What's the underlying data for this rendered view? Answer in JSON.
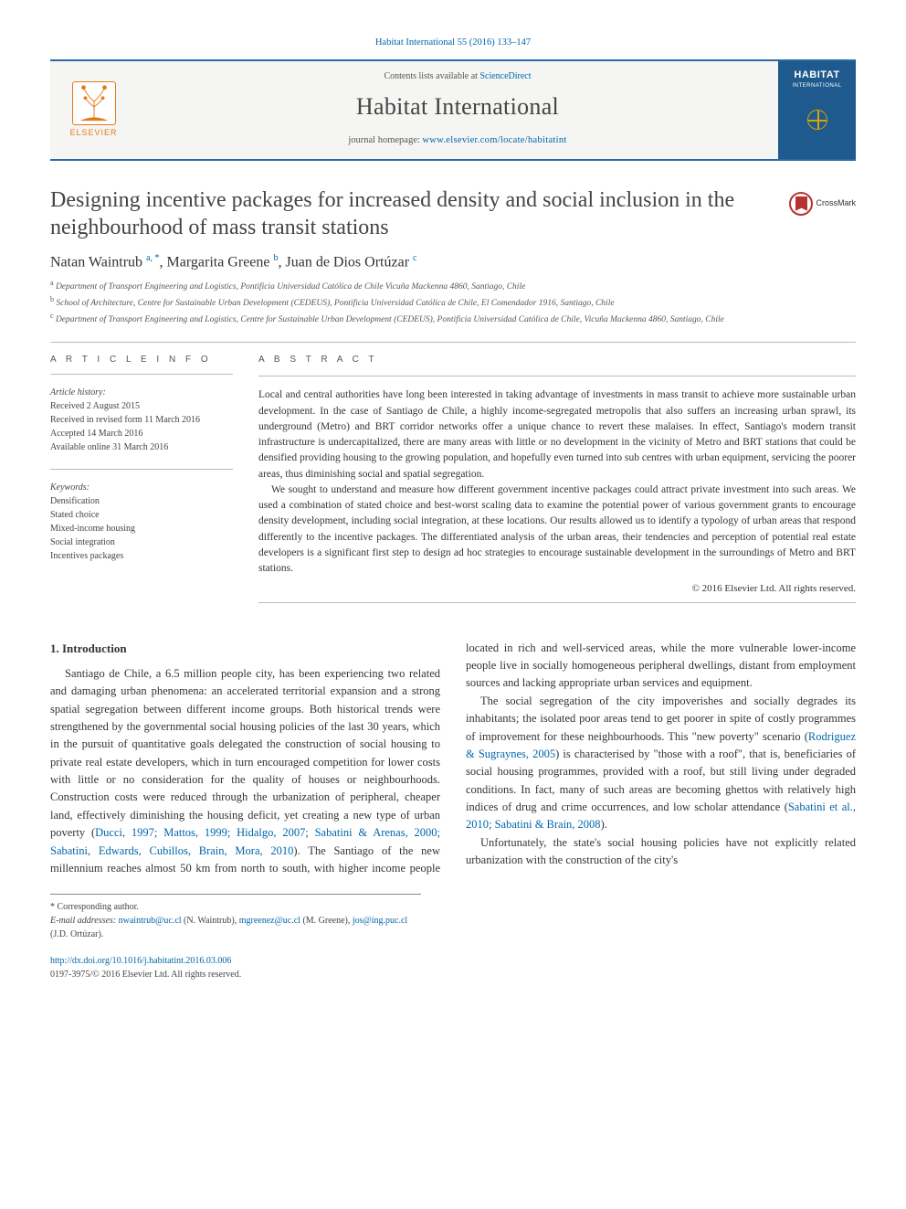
{
  "citation": "Habitat International 55 (2016) 133–147",
  "masthead": {
    "publisher_word": "ELSEVIER",
    "publisher_color": "#e67a17",
    "contents_prefix": "Contents lists available at ",
    "contents_link": "ScienceDirect",
    "journal_name": "Habitat International",
    "homepage_prefix": "journal homepage: ",
    "homepage_url": "www.elsevier.com/locate/habitatint",
    "cover_title": "HABITAT",
    "cover_subtitle": "INTERNATIONAL",
    "bar_color": "#2a6aa8",
    "cover_bg": "#1e5a8e"
  },
  "crossmark_label": "CrossMark",
  "article": {
    "title": "Designing incentive packages for increased density and social inclusion in the neighbourhood of mass transit stations",
    "authors_html": "Natan Waintrub <sup>a, *</sup>, Margarita Greene <sup>b</sup>, Juan de Dios Ortúzar <sup>c</sup>",
    "affiliations": [
      "a Department of Transport Engineering and Logistics, Pontificia Universidad Católica de Chile Vicuña Mackenna 4860, Santiago, Chile",
      "b School of Architecture, Centre for Sustainable Urban Development (CEDEUS), Pontificia Universidad Católica de Chile, El Comendador 1916, Santiago, Chile",
      "c Department of Transport Engineering and Logistics, Centre for Sustainable Urban Development (CEDEUS), Pontificia Universidad Católica de Chile, Vicuña Mackenna 4860, Santiago, Chile"
    ]
  },
  "info": {
    "heading": "A R T I C L E   I N F O",
    "history_label": "Article history:",
    "history": [
      "Received 2 August 2015",
      "Received in revised form 11 March 2016",
      "Accepted 14 March 2016",
      "Available online 31 March 2016"
    ],
    "keywords_label": "Keywords:",
    "keywords": [
      "Densification",
      "Stated choice",
      "Mixed-income housing",
      "Social integration",
      "Incentives packages"
    ]
  },
  "abstract": {
    "heading": "A B S T R A C T",
    "paragraphs": [
      "Local and central authorities have long been interested in taking advantage of investments in mass transit to achieve more sustainable urban development. In the case of Santiago de Chile, a highly income-segregated metropolis that also suffers an increasing urban sprawl, its underground (Metro) and BRT corridor networks offer a unique chance to revert these malaises. In effect, Santiago's modern transit infrastructure is undercapitalized, there are many areas with little or no development in the vicinity of Metro and BRT stations that could be densified providing housing to the growing population, and hopefully even turned into sub centres with urban equipment, servicing the poorer areas, thus diminishing social and spatial segregation.",
      "We sought to understand and measure how different government incentive packages could attract private investment into such areas. We used a combination of stated choice and best-worst scaling data to examine the potential power of various government grants to encourage density development, including social integration, at these locations. Our results allowed us to identify a typology of urban areas that respond differently to the incentive packages. The differentiated analysis of the urban areas, their tendencies and perception of potential real estate developers is a significant first step to design ad hoc strategies to encourage sustainable development in the surroundings of Metro and BRT stations."
    ],
    "copyright": "© 2016 Elsevier Ltd. All rights reserved."
  },
  "body": {
    "section_number": "1.",
    "section_title": "Introduction",
    "col1_p1_a": "Santiago de Chile, a 6.5 million people city, has been experiencing two related and damaging urban phenomena: an accelerated territorial expansion and a strong spatial segregation between different income groups. Both historical trends were strengthened by the governmental social housing policies of the last 30 years, which in the pursuit of quantitative goals delegated the construction of social housing to private real estate developers, which in turn encouraged competition for lower costs with little or no consideration for the quality of houses or neighbourhoods. Construction costs were reduced through the urbanization of peripheral, cheaper land, effectively diminishing the housing deficit, yet creating a new type of urban poverty (",
    "col1_refs1": "Ducci, 1997; Mattos, 1999; Hidalgo, 2007; Sabatini & Arenas, 2000; Sabatini, Edwards, Cubillos, Brain, Mora, 2010",
    "col2_p1_b": "). The Santiago of the new millennium reaches almost 50 km from north to south, with higher income people located in rich and well-serviced areas, while the more vulnerable lower-income people live in socially homogeneous peripheral dwellings, distant from employment sources and lacking appropriate urban services and equipment.",
    "col2_p2_a": "The social segregation of the city impoverishes and socially degrades its inhabitants; the isolated poor areas tend to get poorer in spite of costly programmes of improvement for these neighbourhoods. This \"new poverty\" scenario (",
    "col2_ref2": "Rodriguez & Sugraynes, 2005",
    "col2_p2_b": ") is characterised by \"those with a roof\", that is, beneficiaries of social housing programmes, provided with a roof, but still living under degraded conditions. In fact, many of such areas are becoming ghettos with relatively high indices of drug and crime occurrences, and low scholar attendance (",
    "col2_ref3": "Sabatini et al., 2010; Sabatini & Brain, 2008",
    "col2_p2_c": ").",
    "col2_p3": "Unfortunately, the state's social housing policies have not explicitly related urbanization with the construction of the city's"
  },
  "footnotes": {
    "corr": "* Corresponding author.",
    "email_label": "E-mail addresses:",
    "emails": [
      {
        "addr": "nwaintrub@uc.cl",
        "who": "(N. Waintrub)"
      },
      {
        "addr": "mgreenez@uc.cl",
        "who": "(M. Greene)"
      },
      {
        "addr": "jos@ing.puc.cl",
        "who": "(J.D. Ortúzar)"
      }
    ]
  },
  "footer": {
    "doi": "http://dx.doi.org/10.1016/j.habitatint.2016.03.006",
    "issn_line": "0197-3975/© 2016 Elsevier Ltd. All rights reserved."
  },
  "colors": {
    "link": "#0066aa",
    "text": "#333333",
    "rule": "#bbbbbb"
  }
}
